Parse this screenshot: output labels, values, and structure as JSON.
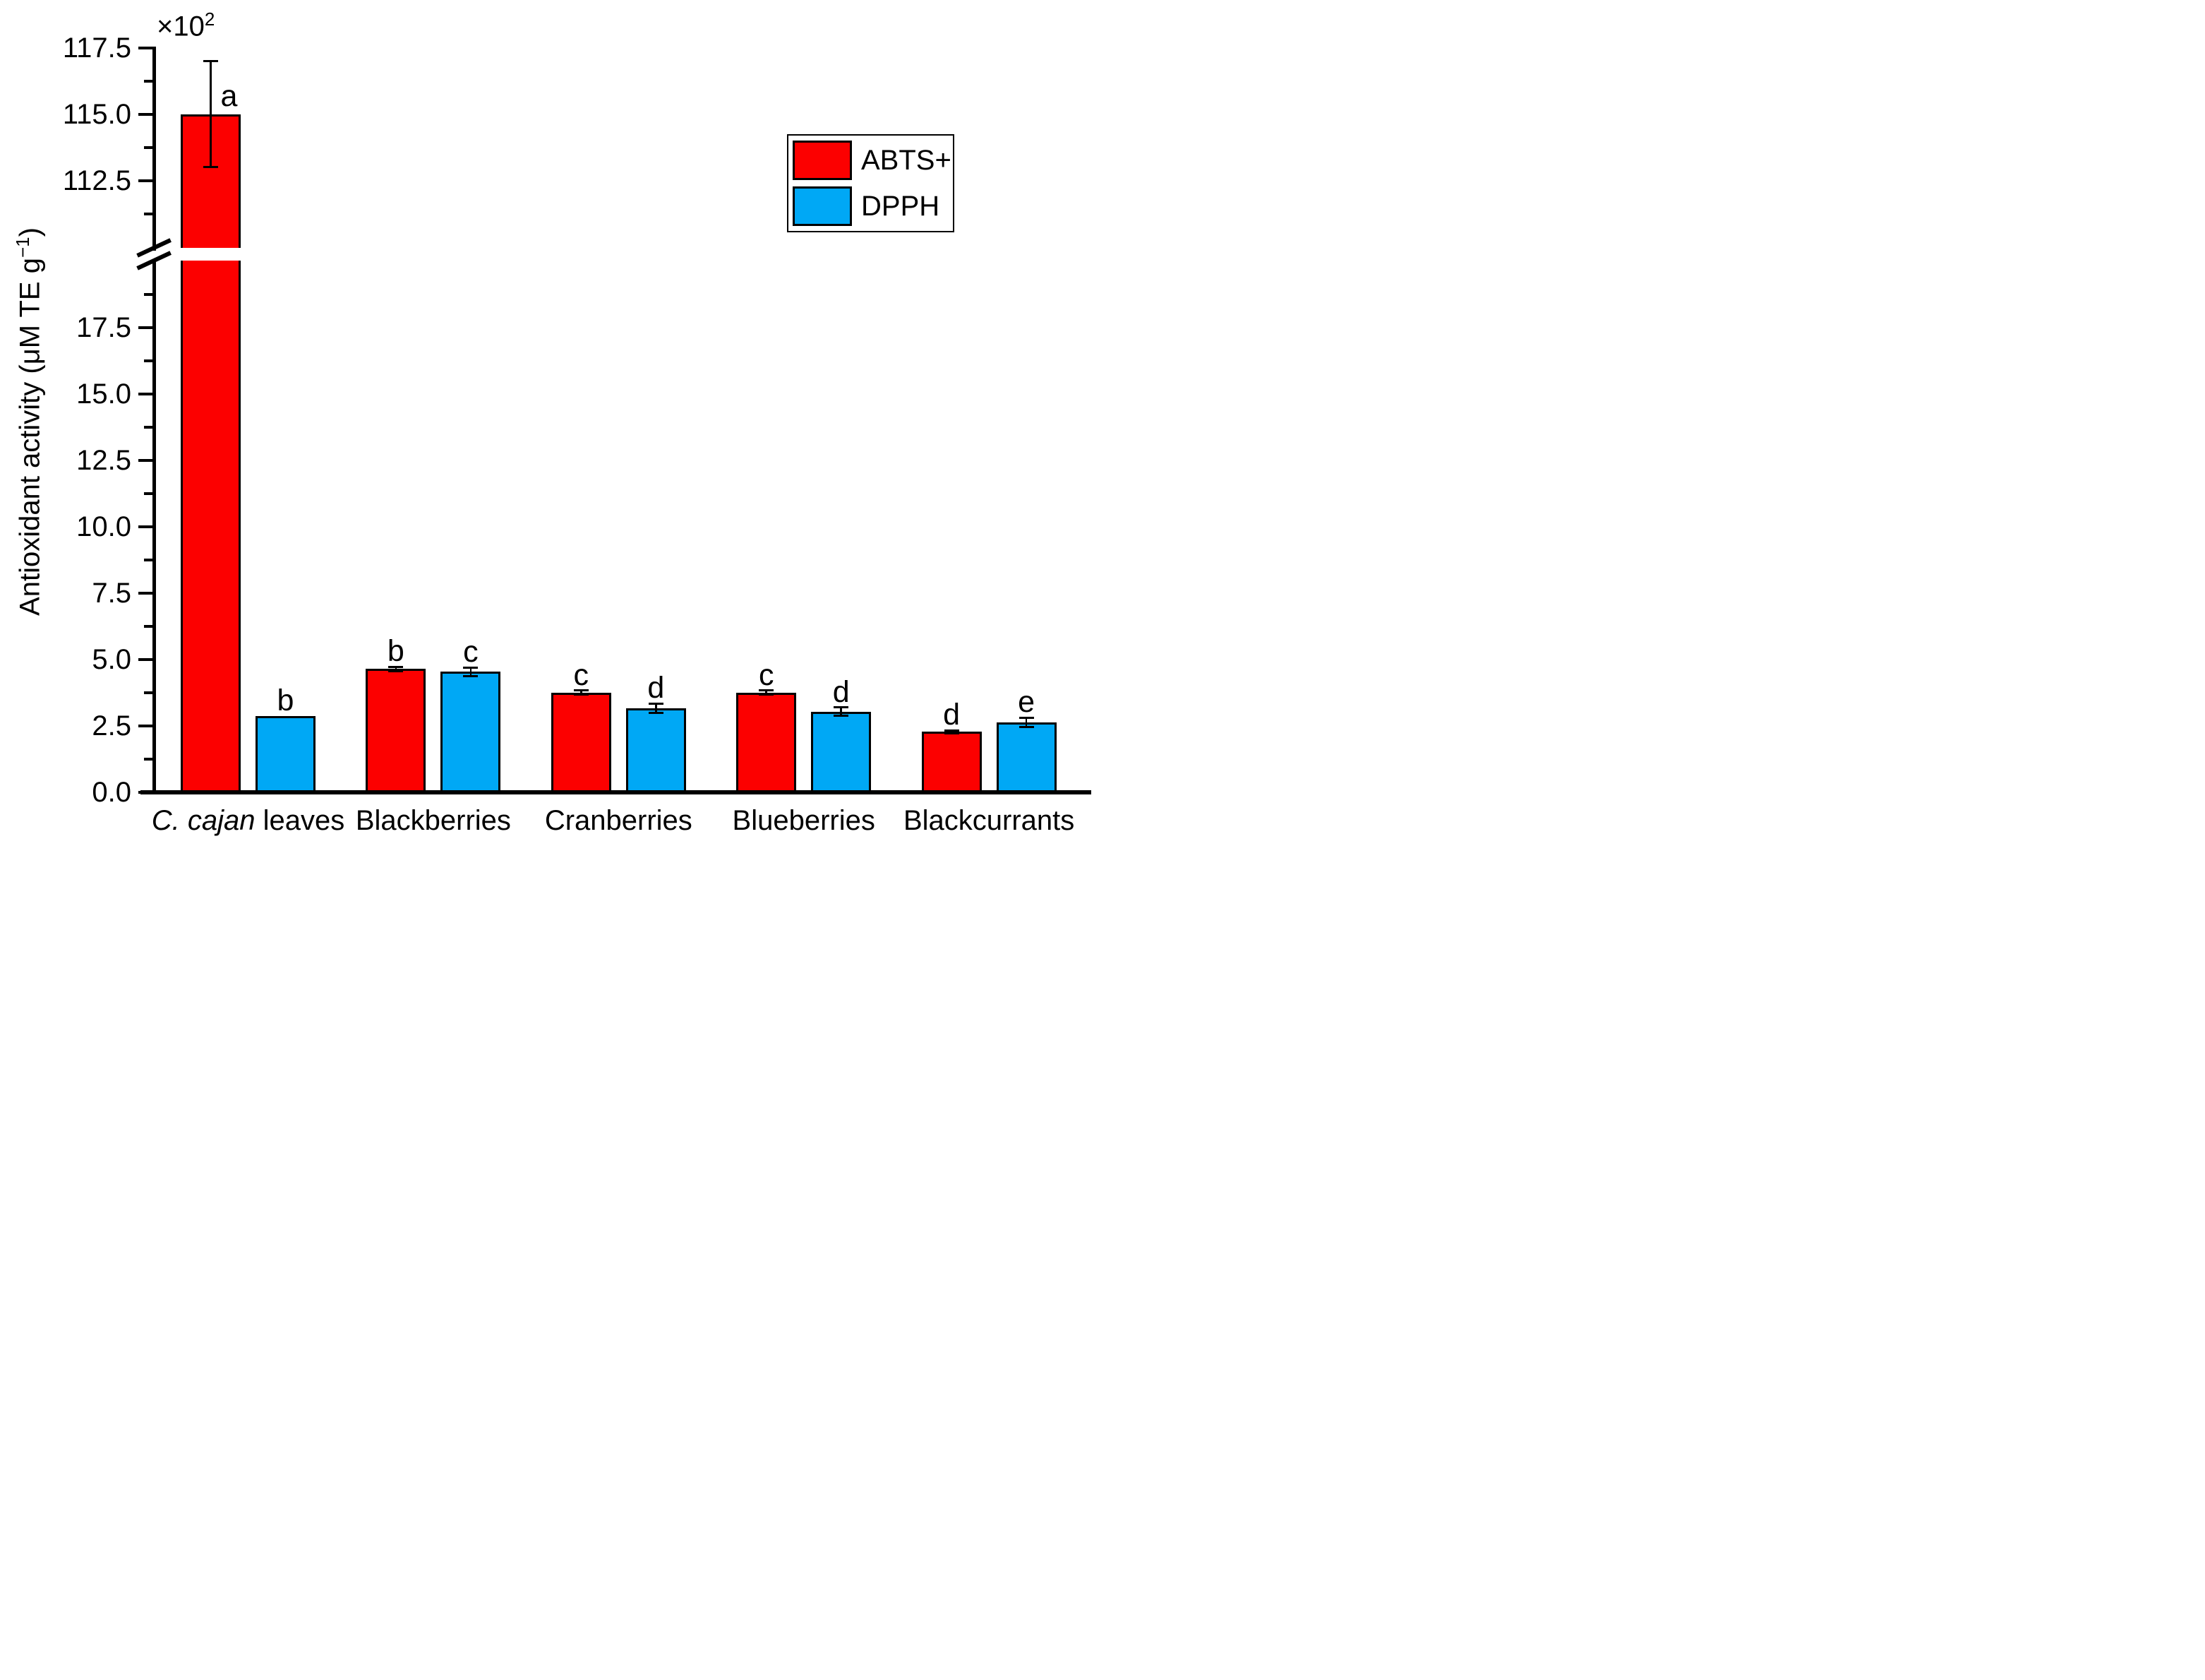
{
  "chart_data": {
    "type": "bar",
    "title": "",
    "ylabel": {
      "main": "Antioxidant activity (μM TE g",
      "sup": "−1",
      "end": ")"
    },
    "y_axis_multiplier": {
      "base": "×10",
      "sup": "2"
    },
    "xlabel": "",
    "categories": [
      {
        "italic": "C. cajan",
        "rest": " leaves"
      },
      {
        "italic": "",
        "rest": "Blackberries"
      },
      {
        "italic": "",
        "rest": "Cranberries"
      },
      {
        "italic": "",
        "rest": "Blueberries"
      },
      {
        "italic": "",
        "rest": "Blackcurrants"
      }
    ],
    "series": [
      {
        "name": "ABTS+",
        "color": "#fc0000",
        "values": [
          115.0,
          4.63,
          3.74,
          3.74,
          2.27
        ],
        "errors": [
          2.0,
          0.08,
          0.08,
          0.08,
          0.05
        ],
        "letters": [
          "a",
          "b",
          "c",
          "c",
          "d"
        ]
      },
      {
        "name": "DPPH",
        "color": "#00a8f5",
        "values": [
          2.87,
          4.53,
          3.16,
          3.03,
          2.63
        ],
        "errors": [
          0,
          0.16,
          0.17,
          0.16,
          0.17
        ],
        "letters": [
          "b",
          "c",
          "d",
          "d",
          "e"
        ]
      }
    ],
    "units_note": "axis values ×10² μM TE g⁻¹",
    "axis": {
      "broken": true,
      "lower_range": [
        0,
        20
      ],
      "upper_range": [
        110,
        117.5
      ],
      "major_ticks_lower": [
        0.0,
        2.5,
        5.0,
        7.5,
        10.0,
        12.5,
        15.0,
        17.5
      ],
      "minor_ticks_lower": [
        1.25,
        3.75,
        6.25,
        8.75,
        11.25,
        13.75,
        16.25,
        18.75
      ],
      "major_ticks_upper": [
        112.5,
        115.0,
        117.5
      ],
      "minor_ticks_upper": [
        111.25,
        113.75,
        116.25
      ],
      "grid": false
    },
    "legend": {
      "position": "upper-right",
      "entries": [
        "ABTS+",
        "DPPH"
      ]
    }
  }
}
